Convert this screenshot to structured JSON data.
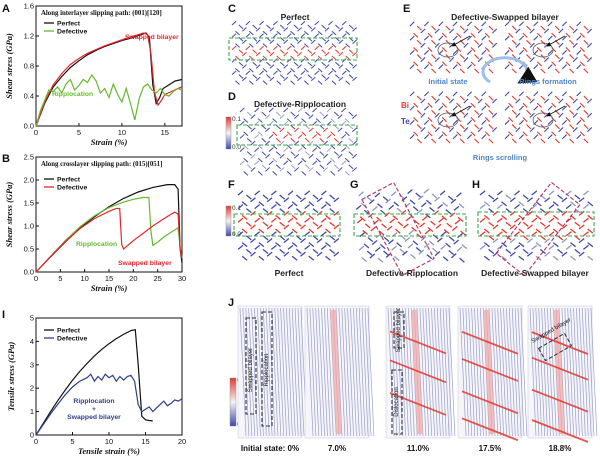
{
  "colors": {
    "perfect": "#111111",
    "defective": "#2e3f8c",
    "swapped": "#e8262b",
    "ripplocation": "#66b830",
    "atom_blue": "#3e4aa8",
    "atom_red": "#e23a2e",
    "highlight_green": "#3aa84a",
    "highlight_magenta": "#b0306a",
    "annotation_blue": "#4f86c6"
  },
  "panels": {
    "a": "A",
    "b": "B",
    "c": "C",
    "d": "D",
    "e": "E",
    "f": "F",
    "g": "G",
    "h": "H",
    "i": "I",
    "j": "J"
  },
  "colorbars": {
    "d": {
      "max": "0.1",
      "min": "0.0"
    },
    "f": {
      "max": "0.1",
      "min": "0.0"
    },
    "j": {
      "max": "0.5",
      "min": "0.0"
    }
  },
  "structures": {
    "c_title": "Perfect",
    "d_title": "Defective-Ripplocation",
    "e_title": "Defective-Swapped bilayer",
    "e_initial": "Initial state",
    "e_rings_formation": "Rings formation",
    "e_rings_scrolling": "Rings scrolling",
    "e_bi": "Bi",
    "e_te": "Te",
    "f_label": "Perfect",
    "g_label": "Defective-Ripplocation",
    "h_label": "Defective-Swapped bilayer"
  },
  "snapshots": {
    "frames": [
      {
        "label": "Initial state: 0%"
      },
      {
        "label": "7.0%"
      },
      {
        "label": "11.0%"
      },
      {
        "label": "17.5%"
      },
      {
        "label": "18.8%"
      }
    ],
    "annotations": {
      "swapped_bilayer": "Swapped bilayer",
      "ripplocation": "Ripplocation",
      "dislocation": "Dislocation"
    }
  },
  "chart_data": [
    {
      "panel": "A",
      "type": "line",
      "title": "Along interlayer slipping path: (001)[120]",
      "xlabel": "Strain (%)",
      "ylabel": "Shear stress (GPa)",
      "xlim": [
        0,
        17
      ],
      "ylim": [
        0,
        1.6
      ],
      "xticks": [
        0,
        5,
        10,
        15
      ],
      "yticks": [
        0.0,
        0.4,
        0.8,
        1.2,
        1.6
      ],
      "legend": [
        "Perfect",
        "Defective"
      ],
      "annotations": [
        "Swapped bilayer",
        "Ripplocation"
      ],
      "series": [
        {
          "name": "Perfect",
          "color": "#111111",
          "x": [
            0,
            1,
            2,
            3,
            4,
            5,
            6,
            7,
            8,
            9,
            10,
            11,
            12,
            12.8,
            13.2,
            13.6,
            14.0,
            14.4,
            14.8,
            15.5,
            16.2,
            17
          ],
          "y": [
            0,
            0.3,
            0.52,
            0.66,
            0.78,
            0.87,
            0.95,
            1.01,
            1.06,
            1.1,
            1.14,
            1.17,
            1.21,
            1.24,
            1.18,
            0.55,
            0.3,
            0.38,
            0.5,
            0.55,
            0.6,
            0.62
          ]
        },
        {
          "name": "Swapped bilayer",
          "color": "#e8262b",
          "x": [
            0,
            1,
            2,
            3,
            4,
            5,
            6,
            7,
            8,
            9,
            10,
            11,
            12,
            12.5,
            13.0,
            13.4,
            13.8,
            14.2,
            14.6,
            15.0,
            15.8,
            16.5,
            17
          ],
          "y": [
            0,
            0.32,
            0.55,
            0.7,
            0.82,
            0.9,
            0.97,
            1.02,
            1.07,
            1.11,
            1.15,
            1.19,
            1.22,
            1.24,
            1.22,
            0.95,
            0.45,
            0.28,
            0.34,
            0.42,
            0.46,
            0.5,
            0.52
          ]
        },
        {
          "name": "Ripplocation",
          "color": "#66b830",
          "x": [
            0,
            0.5,
            1,
            1.5,
            2,
            2.5,
            3,
            3.5,
            4,
            4.5,
            5,
            5.5,
            6,
            6.5,
            7,
            7.5,
            8,
            8.5,
            9,
            9.5,
            10,
            10.5,
            11,
            11.5,
            12,
            12.5,
            13,
            13.5,
            14,
            14.5,
            15,
            15.5,
            16,
            16.5,
            17
          ],
          "y": [
            0,
            0.2,
            0.34,
            0.48,
            0.46,
            0.52,
            0.44,
            0.56,
            0.62,
            0.48,
            0.54,
            0.62,
            0.58,
            0.68,
            0.6,
            0.44,
            0.5,
            0.38,
            0.56,
            0.42,
            0.32,
            0.5,
            0.3,
            0.08,
            0.36,
            0.52,
            0.56,
            0.48,
            0.44,
            0.5,
            0.42,
            0.4,
            0.46,
            0.5,
            0.48
          ]
        }
      ]
    },
    {
      "panel": "B",
      "type": "line",
      "title": "Along crosslayer slipping path: (015)[051]",
      "xlabel": "Strain (%)",
      "ylabel": "Shear stress (GPa)",
      "xlim": [
        0,
        30
      ],
      "ylim": [
        0,
        2.5
      ],
      "xticks": [
        0,
        5,
        10,
        15,
        20,
        25,
        30
      ],
      "yticks": [
        0.0,
        0.5,
        1.0,
        1.5,
        2.0,
        2.5
      ],
      "legend": [
        "Perfect",
        "Defective"
      ],
      "annotations": [
        "Ripplocation",
        "Swapped bilayer"
      ],
      "series": [
        {
          "name": "Perfect",
          "color": "#111111",
          "x": [
            0,
            3,
            6,
            9,
            12,
            15,
            18,
            21,
            24,
            27,
            28.5,
            29.2,
            29.6,
            30
          ],
          "y": [
            0,
            0.33,
            0.65,
            0.95,
            1.2,
            1.42,
            1.6,
            1.74,
            1.84,
            1.9,
            1.9,
            1.8,
            0.5,
            0.2
          ]
        },
        {
          "name": "Ripplocation",
          "color": "#66b830",
          "x": [
            0,
            3,
            6,
            9,
            12,
            15,
            18,
            20,
            22,
            23.2,
            23.6,
            24,
            25,
            26.5,
            28,
            29.2,
            29.6,
            30
          ],
          "y": [
            0,
            0.34,
            0.68,
            0.98,
            1.22,
            1.4,
            1.52,
            1.58,
            1.62,
            1.62,
            0.9,
            0.58,
            0.65,
            0.78,
            0.88,
            0.96,
            0.55,
            0.3
          ]
        },
        {
          "name": "Swapped bilayer",
          "color": "#e8262b",
          "x": [
            0,
            3,
            6,
            9,
            12,
            15,
            16.5,
            17.2,
            17.6,
            18,
            20,
            22,
            24,
            26,
            27.5,
            28.5,
            29.2,
            29.6,
            30
          ],
          "y": [
            0,
            0.34,
            0.66,
            0.94,
            1.16,
            1.32,
            1.38,
            1.38,
            0.6,
            0.5,
            0.68,
            0.84,
            1.0,
            1.14,
            1.24,
            1.3,
            1.26,
            0.5,
            0.3
          ]
        }
      ]
    },
    {
      "panel": "I",
      "type": "line",
      "title": "",
      "xlabel": "Tensile strain (%)",
      "ylabel": "Tensile stress (GPa)",
      "xlim": [
        0,
        20
      ],
      "ylim": [
        0,
        5
      ],
      "xticks": [
        0,
        5,
        10,
        15,
        20
      ],
      "yticks": [
        0,
        1,
        2,
        3,
        4,
        5
      ],
      "legend": [
        "Perfect",
        "Defective"
      ],
      "annotations": [
        "Ripplocation",
        "+",
        "Swapped bilayer"
      ],
      "series": [
        {
          "name": "Perfect",
          "color": "#111111",
          "x": [
            0,
            1,
            2,
            3,
            4,
            5,
            6,
            7,
            8,
            9,
            10,
            11,
            12,
            13,
            13.6,
            14,
            14.5,
            15,
            15.5,
            16
          ],
          "y": [
            0,
            0.5,
            1.0,
            1.48,
            1.92,
            2.34,
            2.72,
            3.06,
            3.38,
            3.66,
            3.9,
            4.12,
            4.3,
            4.46,
            4.5,
            3.0,
            0.8,
            0.65,
            0.62,
            0.6
          ]
        },
        {
          "name": "Defective",
          "color": "#2e3f8c",
          "x": [
            0,
            1,
            2,
            3,
            4,
            5,
            6,
            7,
            7.5,
            8,
            8.5,
            9,
            9.5,
            10,
            10.5,
            11,
            11.5,
            12,
            12.5,
            13,
            13.5,
            14,
            14.5,
            15,
            15.5,
            16,
            16.5,
            17,
            17.5,
            18,
            18.5,
            19,
            19.5,
            20
          ],
          "y": [
            0,
            0.45,
            0.9,
            1.32,
            1.72,
            2.05,
            2.3,
            2.45,
            2.6,
            2.3,
            2.5,
            2.35,
            2.6,
            2.45,
            2.55,
            2.3,
            2.5,
            2.35,
            2.5,
            2.55,
            2.3,
            1.3,
            1.0,
            1.1,
            1.2,
            1.0,
            1.15,
            1.3,
            1.45,
            1.25,
            1.35,
            1.5,
            1.45,
            1.55
          ]
        }
      ]
    }
  ]
}
